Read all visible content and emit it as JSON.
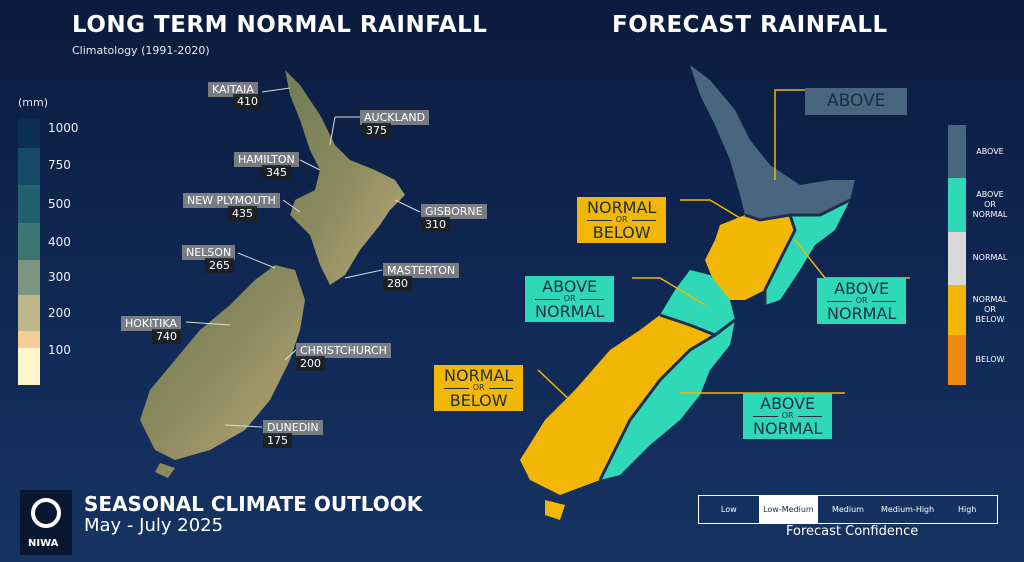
{
  "left": {
    "title": "LONG TERM NORMAL RAINFALL",
    "subtitle": "Climatology (1991-2020)",
    "legend": {
      "unit": "(mm)",
      "ticks": [
        1000,
        750,
        500,
        400,
        300,
        200,
        100
      ]
    },
    "stations": [
      {
        "name": "KAITAIA",
        "value": 410
      },
      {
        "name": "AUCKLAND",
        "value": 375
      },
      {
        "name": "HAMILTON",
        "value": 345
      },
      {
        "name": "NEW PLYMOUTH",
        "value": 435
      },
      {
        "name": "GISBORNE",
        "value": 310
      },
      {
        "name": "NELSON",
        "value": 265
      },
      {
        "name": "MASTERTON",
        "value": 280
      },
      {
        "name": "HOKITIKA",
        "value": 740
      },
      {
        "name": "CHRISTCHURCH",
        "value": 200
      },
      {
        "name": "DUNEDIN",
        "value": 175
      }
    ]
  },
  "right": {
    "title": "FORECAST RAINFALL",
    "regions": [
      {
        "lines": [
          "ABOVE"
        ],
        "color": "#4a6580"
      },
      {
        "lines": [
          "NORMAL",
          "OR",
          "BELOW"
        ],
        "color": "#f2b705"
      },
      {
        "lines": [
          "ABOVE",
          "OR",
          "NORMAL"
        ],
        "color": "#2fd8b6"
      },
      {
        "lines": [
          "ABOVE",
          "OR",
          "NORMAL"
        ],
        "color": "#2fd8b6"
      },
      {
        "lines": [
          "NORMAL",
          "OR",
          "BELOW"
        ],
        "color": "#f2b705"
      },
      {
        "lines": [
          "ABOVE",
          "OR",
          "NORMAL"
        ],
        "color": "#2fd8b6"
      }
    ],
    "legend": [
      {
        "lines": [
          "ABOVE"
        ],
        "color": "#4a6580"
      },
      {
        "lines": [
          "ABOVE",
          "OR",
          "NORMAL"
        ],
        "color": "#2fd8b6"
      },
      {
        "lines": [
          "NORMAL"
        ],
        "color": "#d9d9d9"
      },
      {
        "lines": [
          "NORMAL",
          "OR",
          "BELOW"
        ],
        "color": "#f2b705"
      },
      {
        "lines": [
          "BELOW"
        ],
        "color": "#f08a0c"
      }
    ],
    "confidence": {
      "levels": [
        "Low",
        "Low-Medium",
        "Medium",
        "Medium-High",
        "High"
      ],
      "selected": 1,
      "label": "Forecast Confidence"
    }
  },
  "footer": {
    "logo": "NIWA",
    "title": "SEASONAL CLIMATE OUTLOOK",
    "period": "May - July 2025"
  }
}
